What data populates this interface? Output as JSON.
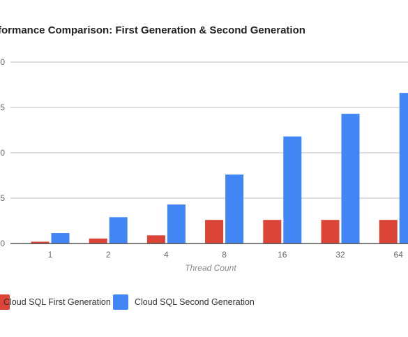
{
  "chart_data": {
    "type": "bar",
    "title": "formance Comparison: First Generation & Second Generation",
    "xlabel": "Thread Count",
    "ylabel": "",
    "categories": [
      "1",
      "2",
      "4",
      "8",
      "16",
      "32",
      "64"
    ],
    "y_tick_labels": [
      "0",
      "5",
      "0",
      "5",
      "0"
    ],
    "ylim": [
      0,
      20
    ],
    "grid": true,
    "legend_position": "bottom-left",
    "series": [
      {
        "name": "Cloud SQL First Generation",
        "color": "#db4437",
        "values": [
          0.2,
          0.55,
          0.9,
          2.6,
          2.6,
          2.6,
          2.6
        ]
      },
      {
        "name": "Cloud SQL Second Generation",
        "color": "#4285f4",
        "values": [
          1.15,
          2.9,
          4.3,
          7.6,
          11.8,
          14.3,
          16.6
        ]
      }
    ]
  }
}
